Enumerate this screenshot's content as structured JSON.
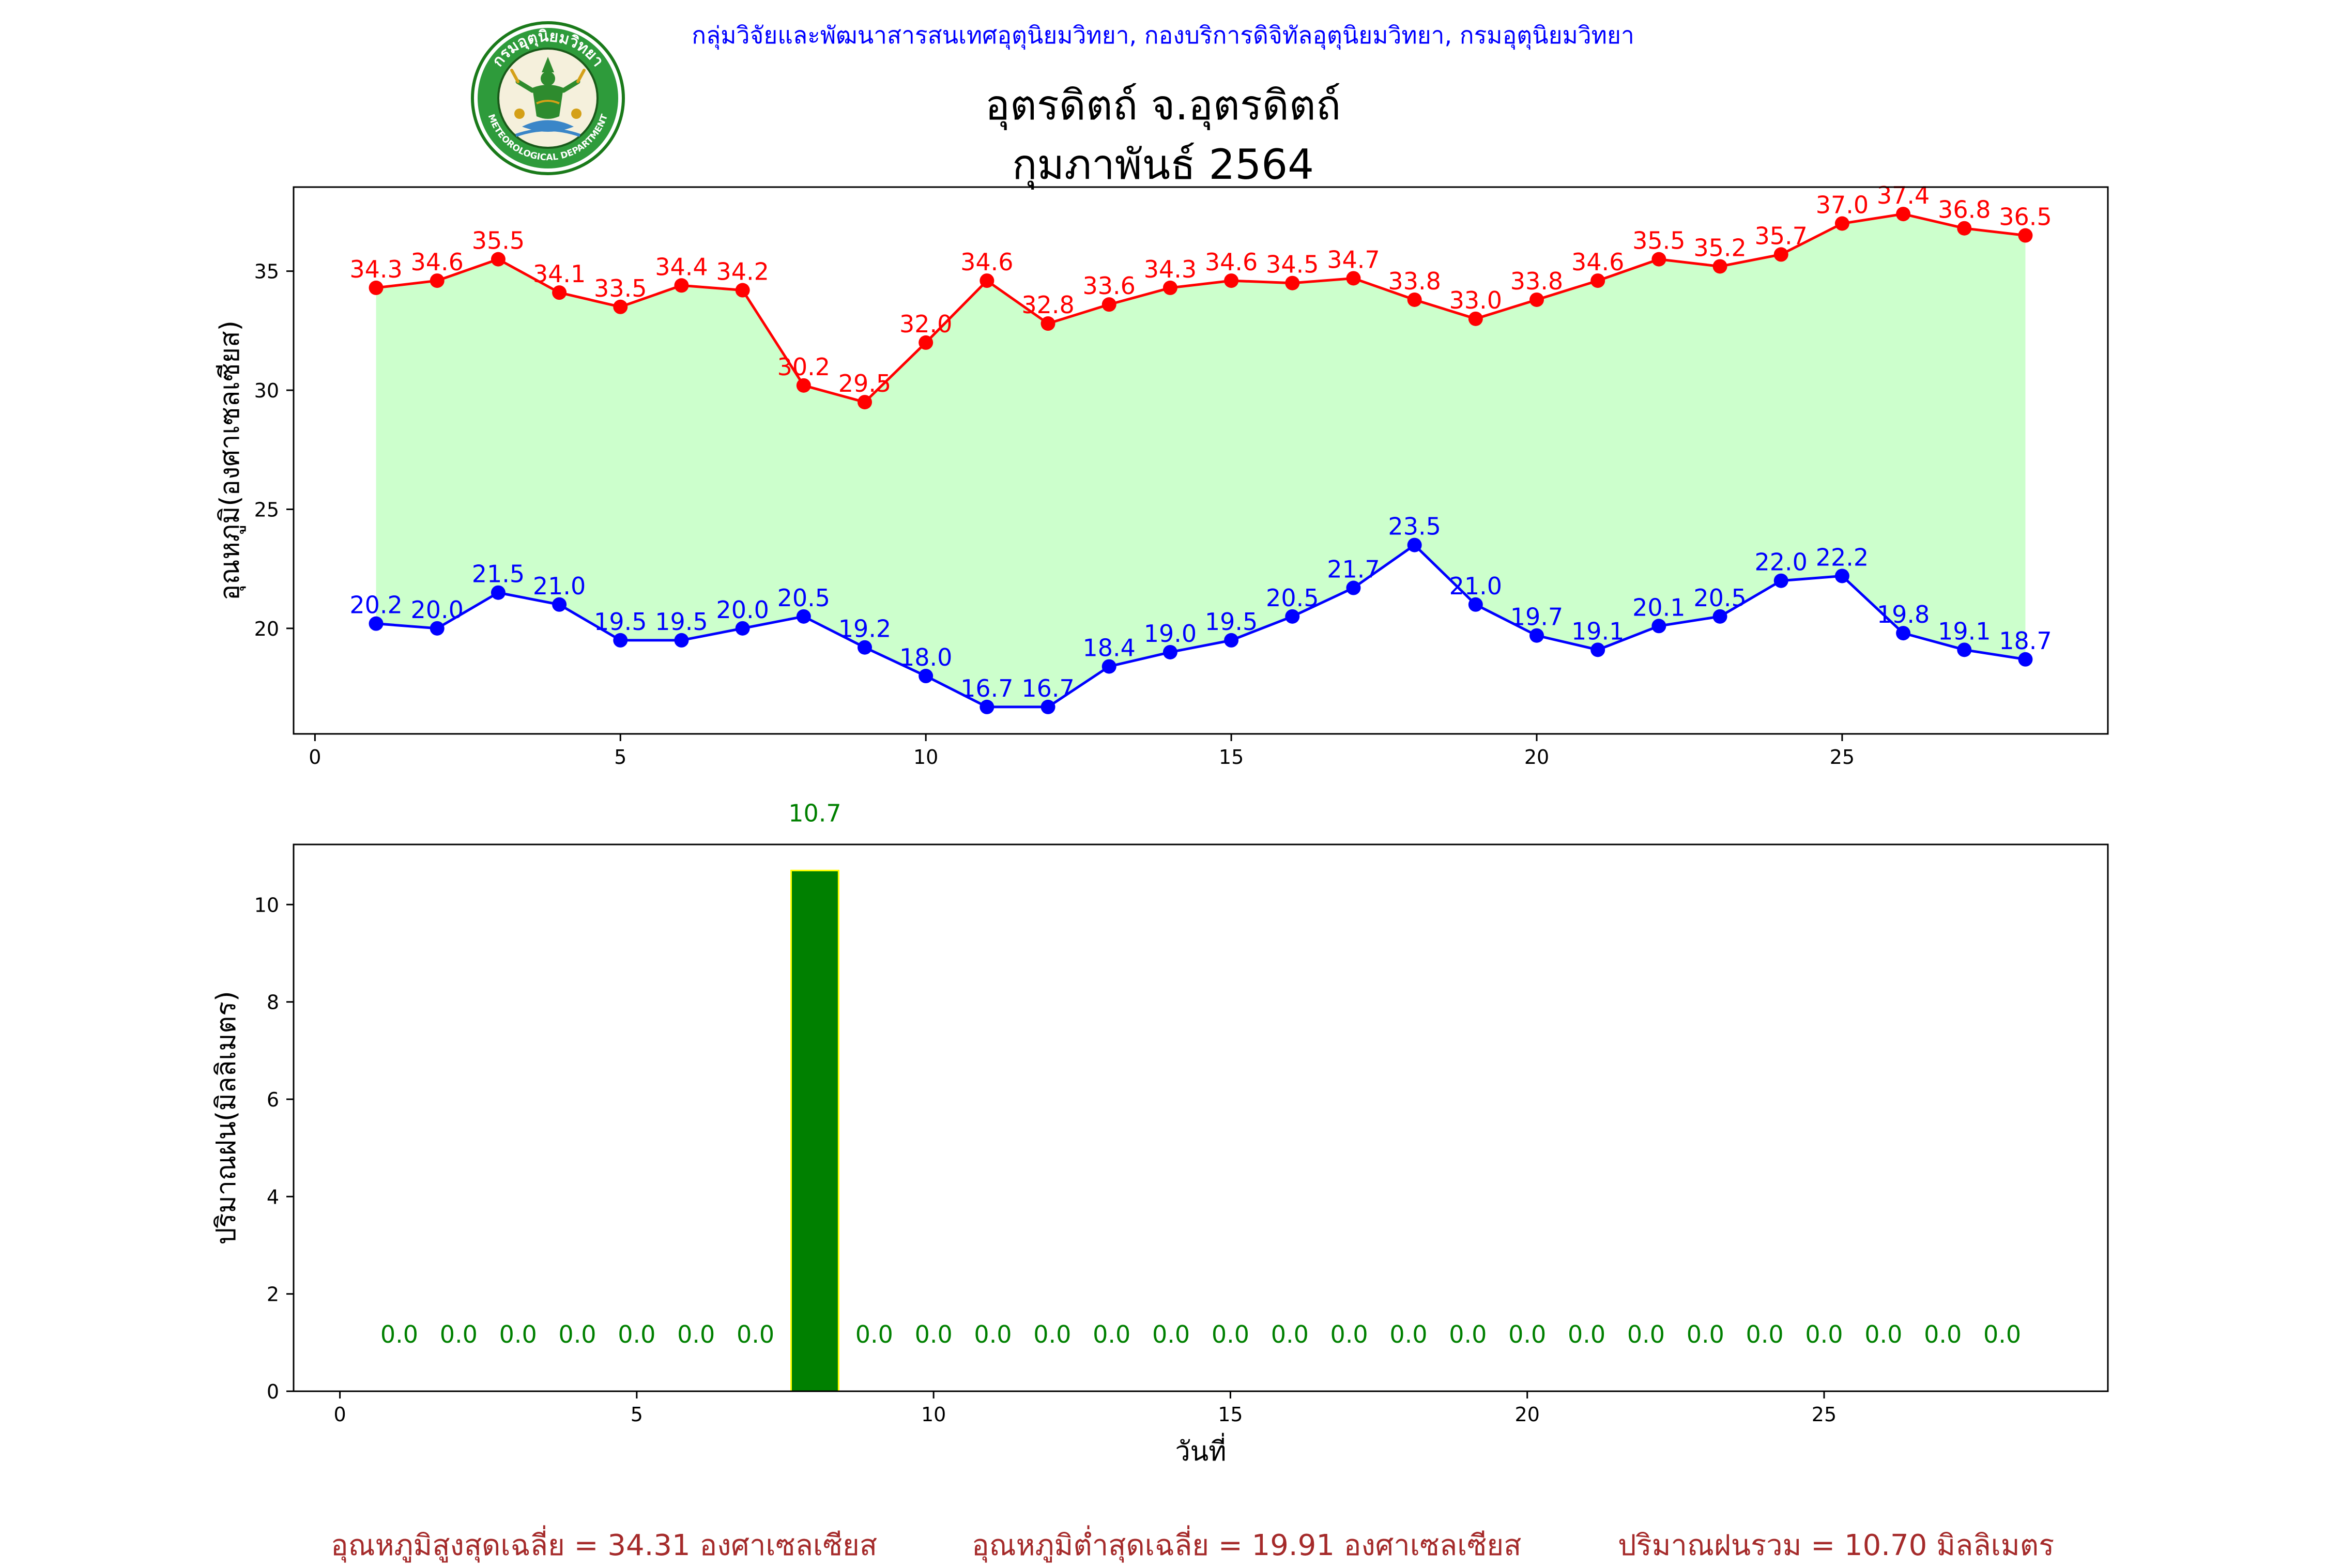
{
  "header": {
    "agency": "กลุ่มวิจัยและพัฒนาสารสนเทศอุตุนิยมวิทยา, กองบริการดิจิทัลอุตุนิยมวิทยา, กรมอุตุนิยมวิทยา",
    "title_line1": "อุตรดิตถ์ จ.อุตรดิตถ์",
    "title_line2": "กุมภาพันธ์ 2564",
    "logo_text_top": "กรมอุตุนิยมวิทยา",
    "logo_text_bottom": "METEOROLOGICAL DEPARTMENT"
  },
  "colors": {
    "max_line": "#ff0000",
    "min_line": "#0000ff",
    "fill": "#ccffcc",
    "rain_bar": "#008000",
    "rain_edge": "#ffff00",
    "rain_label": "#008000",
    "footer": "#a52a2a"
  },
  "chart_data": [
    {
      "type": "line",
      "ylabel": "อุณหภูมิ(องศาเซลเซียส)",
      "xlabel": "",
      "x": [
        1,
        2,
        3,
        4,
        5,
        6,
        7,
        8,
        9,
        10,
        11,
        12,
        13,
        14,
        15,
        16,
        17,
        18,
        19,
        20,
        21,
        22,
        23,
        24,
        25,
        26,
        27,
        28
      ],
      "series": [
        {
          "values": [
            34.3,
            34.6,
            35.5,
            34.1,
            33.5,
            34.4,
            34.2,
            30.2,
            29.5,
            32.0,
            34.6,
            32.8,
            33.6,
            34.3,
            34.6,
            34.5,
            34.7,
            33.8,
            33.0,
            33.8,
            34.6,
            35.5,
            35.2,
            35.7,
            37.0,
            37.4,
            36.8,
            36.5
          ]
        },
        {
          "values": [
            20.2,
            20.0,
            21.5,
            21.0,
            19.5,
            19.5,
            20.0,
            20.5,
            19.2,
            18.0,
            16.7,
            16.7,
            18.4,
            19.0,
            19.5,
            20.5,
            21.7,
            23.5,
            21.0,
            19.7,
            19.1,
            20.1,
            20.5,
            22.0,
            22.2,
            19.8,
            19.1,
            18.7
          ]
        }
      ],
      "fill_between": true,
      "xlim": [
        -0.35,
        29.35
      ],
      "ylim": [
        15.57,
        38.53
      ],
      "xticks": [
        0,
        5,
        10,
        15,
        20,
        25
      ],
      "yticks": [
        20,
        25,
        30,
        35
      ],
      "grid": false
    },
    {
      "type": "bar",
      "ylabel": "ปริมาณฝน(มิลลิเมตร)",
      "xlabel": "วันที่",
      "x": [
        1,
        2,
        3,
        4,
        5,
        6,
        7,
        8,
        9,
        10,
        11,
        12,
        13,
        14,
        15,
        16,
        17,
        18,
        19,
        20,
        21,
        22,
        23,
        24,
        25,
        26,
        27,
        28
      ],
      "values": [
        0.0,
        0.0,
        0.0,
        0.0,
        0.0,
        0.0,
        0.0,
        10.7,
        0.0,
        0.0,
        0.0,
        0.0,
        0.0,
        0.0,
        0.0,
        0.0,
        0.0,
        0.0,
        0.0,
        0.0,
        0.0,
        0.0,
        0.0,
        0.0,
        0.0,
        0.0,
        0.0,
        0.0
      ],
      "labels": [
        "0.0",
        "0.0",
        "0.0",
        "0.0",
        "0.0",
        "0.0",
        "0.0",
        "10.7",
        "0.0",
        "0.0",
        "0.0",
        "0.0",
        "0.0",
        "0.0",
        "0.0",
        "0.0",
        "0.0",
        "0.0",
        "0.0",
        "0.0",
        "0.0",
        "0.0",
        "0.0",
        "0.0",
        "0.0",
        "0.0",
        "0.0",
        "0.0"
      ],
      "xlim": [
        -0.78,
        29.78
      ],
      "ylim": [
        0,
        11.235
      ],
      "xticks": [
        0,
        5,
        10,
        15,
        20,
        25
      ],
      "yticks": [
        0,
        2,
        4,
        6,
        8,
        10
      ],
      "grid": false
    }
  ],
  "footer": {
    "avg_max": "อุณหภูมิสูงสุดเฉลี่ย = 34.31 องศาเซลเซียส",
    "avg_min": "อุณหภูมิต่ำสุดเฉลี่ย = 19.91 องศาเซลเซียส",
    "total_rain": "ปริมาณฝนรวม = 10.70 มิลลิเมตร"
  }
}
